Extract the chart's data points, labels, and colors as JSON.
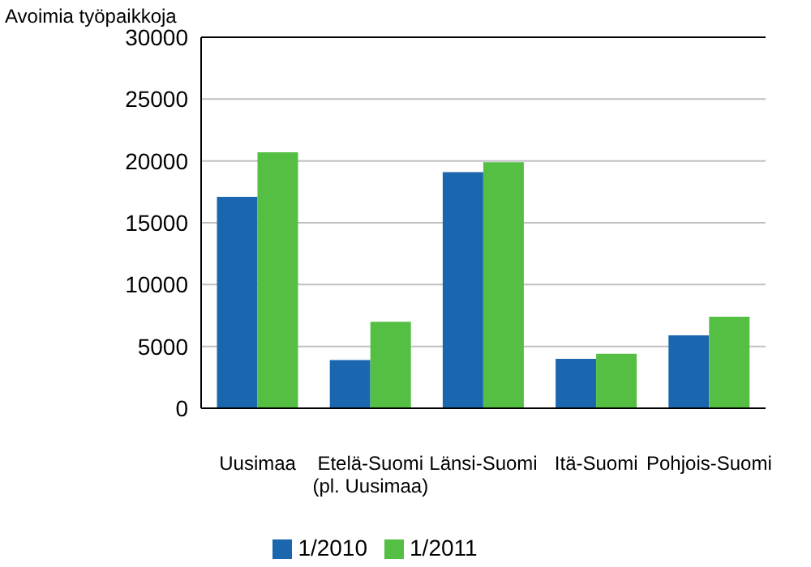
{
  "chart_data": {
    "type": "bar",
    "ylabel": "Avoimia työpaikkoja",
    "categories": [
      "Uusimaa",
      "Etelä-Suomi\n(pl. Uusimaa)",
      "Länsi-Suomi",
      "Itä-Suomi",
      "Pohjois-Suomi"
    ],
    "series": [
      {
        "name": "1/2010",
        "color": "#1a67b0",
        "values": [
          17100,
          3900,
          19100,
          4000,
          5900
        ]
      },
      {
        "name": "1/2011",
        "color": "#55bf44",
        "values": [
          20700,
          7000,
          19900,
          4400,
          7400
        ]
      }
    ],
    "ylim": [
      0,
      30000
    ],
    "yticks": [
      0,
      5000,
      10000,
      15000,
      20000,
      25000,
      30000
    ],
    "grid": "y",
    "legend": "bottom"
  }
}
